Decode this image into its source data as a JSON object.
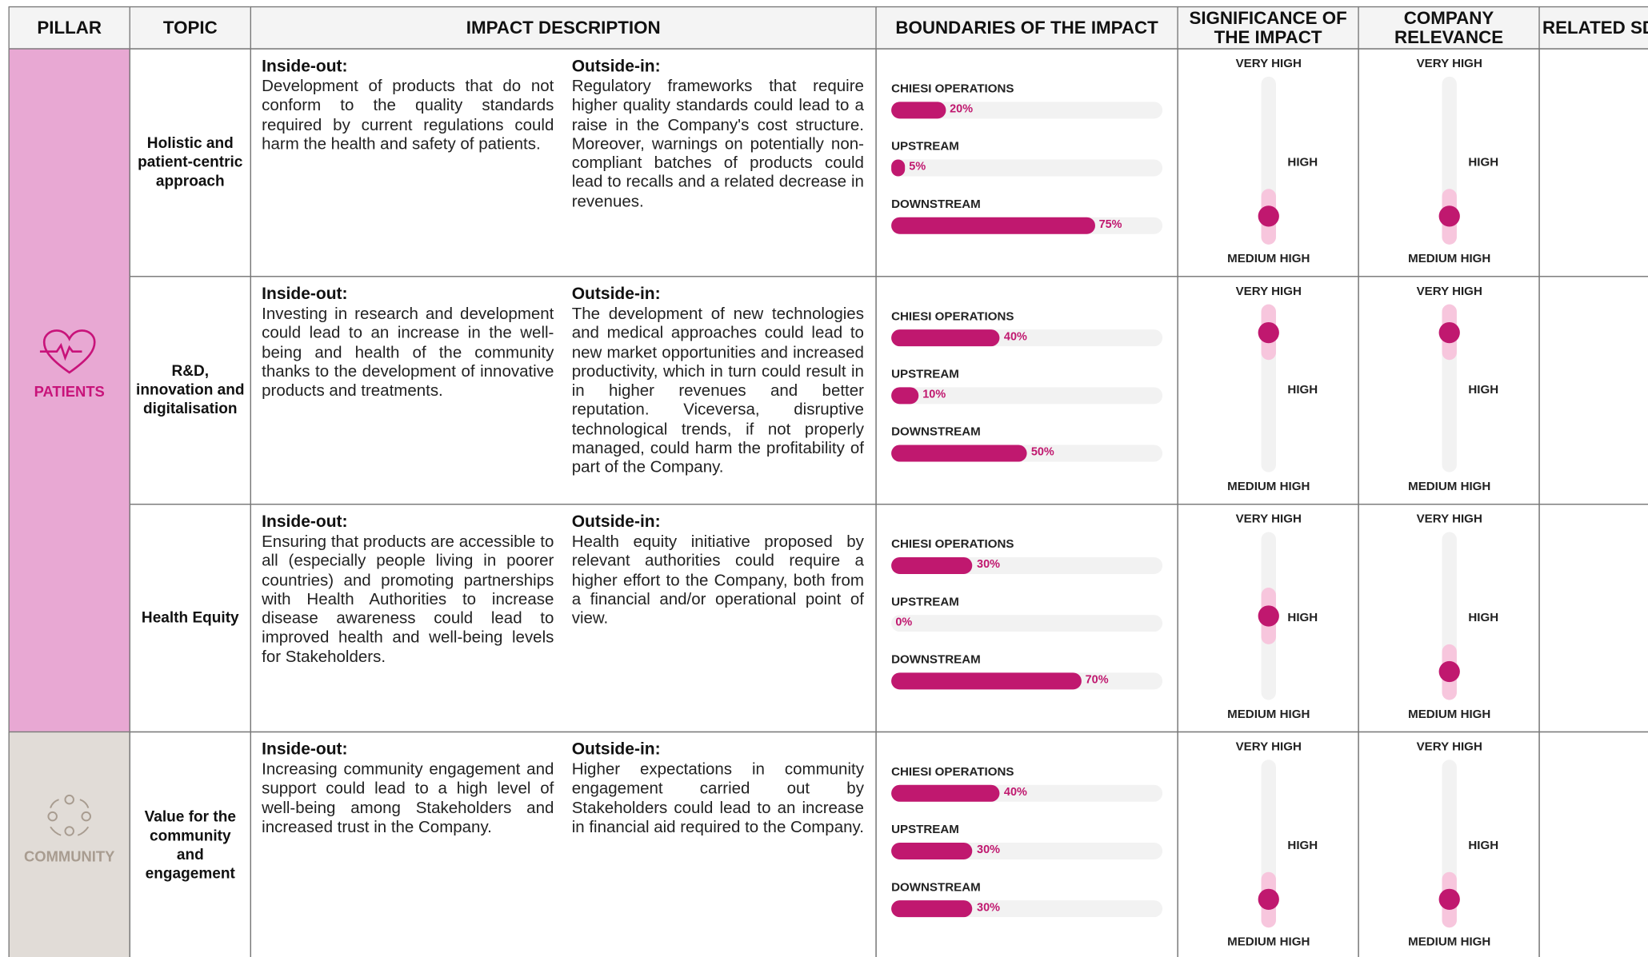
{
  "header": [
    "PILLAR",
    "TOPIC",
    "IMPACT DESCRIPTION",
    "BOUNDARIES OF THE IMPACT",
    "SIGNIFICANCE OF THE IMPACT",
    "COMPANY RELEVANCE",
    "RELATED SDGs"
  ],
  "labels": {
    "inside_out": "Inside-out:",
    "outside_in": "Outside-in:"
  },
  "levels": [
    "VERY HIGH",
    "HIGH",
    "MEDIUM HIGH"
  ],
  "scale": {
    "xlim": [
      0,
      100
    ],
    "slider_lim": [
      0,
      6
    ]
  },
  "pillars": [
    {
      "name": "PATIENTS",
      "rows": [
        {
          "topic": "Holistic and patient-centric approach",
          "inside_out": "Development of products that do not conform to the quality standards required by current regulations could harm the health and safety of patients.",
          "outside_in": "Regulatory frameworks that require higher quality standards could lead to a raise in the Company's cost structure. Moreover, warnings on potentially non-compliant batches of products could lead to recalls and a related decrease in revenues.",
          "boundaries": [
            {
              "label": "CHIESI OPERATIONS",
              "value": 20,
              "value_label": "20%"
            },
            {
              "label": "UPSTREAM",
              "value": 5,
              "value_label": "5%"
            },
            {
              "label": "DOWNSTREAM",
              "value": 75,
              "value_label": "75%"
            }
          ],
          "significance": 1,
          "relevance": 1
        },
        {
          "topic": "R&D, innovation and digitalisation",
          "inside_out": "Investing in research and development could lead to an increase in the well-being and health of the community thanks to the development of innovative products and treatments.",
          "outside_in": "The development of new technologies and medical approaches could lead to new market opportunities and increased productivity, which in turn could result in in higher revenues and better reputation. Viceversa, disruptive technological trends, if not properly managed, could harm the profitability of part of the Company.",
          "boundaries": [
            {
              "label": "CHIESI OPERATIONS",
              "value": 40,
              "value_label": "40%"
            },
            {
              "label": "UPSTREAM",
              "value": 10,
              "value_label": "10%"
            },
            {
              "label": "DOWNSTREAM",
              "value": 50,
              "value_label": "50%"
            }
          ],
          "significance": 5,
          "relevance": 5
        },
        {
          "topic": "Health Equity",
          "inside_out": "Ensuring that products are accessible to all (especially people living in poorer countries) and promoting partnerships with Health Authorities to increase disease awareness could lead to improved health and well-being levels for Stakeholders.",
          "outside_in": "Health equity initiative proposed by relevant authorities could require a higher effort to the Company, both from a financial and/or operational point of view.",
          "boundaries": [
            {
              "label": "CHIESI OPERATIONS",
              "value": 30,
              "value_label": "30%"
            },
            {
              "label": "UPSTREAM",
              "value": 0,
              "value_label": "0%"
            },
            {
              "label": "DOWNSTREAM",
              "value": 70,
              "value_label": "70%"
            }
          ],
          "significance": 3,
          "relevance": 1
        }
      ]
    },
    {
      "name": "COMMUNITY",
      "rows": [
        {
          "topic": "Value for the community and engagement",
          "inside_out": "Increasing community engagement and support could lead to a high level of well-being among Stakeholders and increased trust in the Company.",
          "outside_in": "Higher expectations in community engagement carried out by Stakeholders could lead to an increase in financial aid required to the Company.",
          "boundaries": [
            {
              "label": "CHIESI OPERATIONS",
              "value": 40,
              "value_label": "40%"
            },
            {
              "label": "UPSTREAM",
              "value": 30,
              "value_label": "30%"
            },
            {
              "label": "DOWNSTREAM",
              "value": 30,
              "value_label": "30%"
            }
          ],
          "significance": 1,
          "relevance": 1
        }
      ]
    }
  ]
}
